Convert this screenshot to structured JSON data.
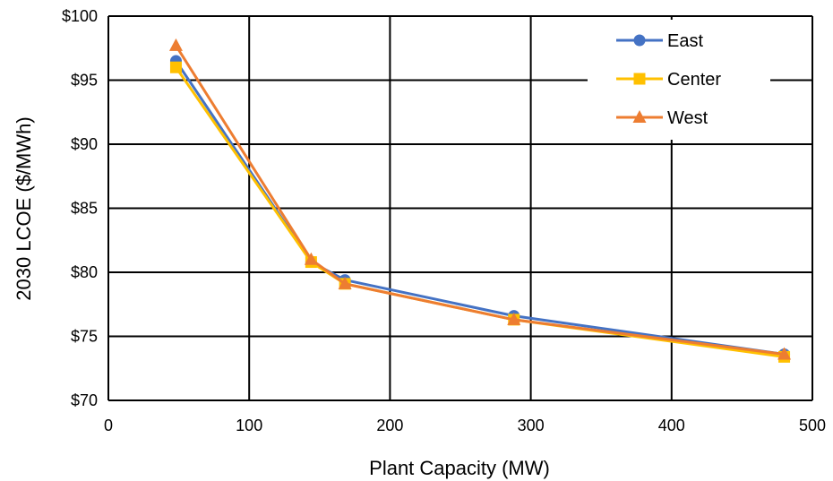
{
  "chart_data": {
    "type": "line",
    "title": "",
    "xlabel": "Plant Capacity (MW)",
    "ylabel": "2030 LCOE ($/MWh)",
    "xlim": [
      0,
      500
    ],
    "ylim": [
      70,
      100
    ],
    "x_ticks": [
      0,
      100,
      200,
      300,
      400,
      500
    ],
    "x_tick_labels": [
      "0",
      "100",
      "200",
      "300",
      "400",
      "500"
    ],
    "y_ticks": [
      70,
      75,
      80,
      85,
      90,
      95,
      100
    ],
    "y_tick_labels": [
      "$70",
      "$75",
      "$80",
      "$85",
      "$90",
      "$95",
      "$100"
    ],
    "grid": true,
    "legend_position": "top-right",
    "series": [
      {
        "name": "East",
        "color": "#4472C4",
        "marker": "circle",
        "x": [
          48,
          144,
          168,
          288,
          480
        ],
        "y": [
          96.5,
          80.8,
          79.4,
          76.6,
          73.6
        ]
      },
      {
        "name": "Center",
        "color": "#FFC000",
        "marker": "square",
        "x": [
          48,
          144,
          168,
          288,
          480
        ],
        "y": [
          96.0,
          80.8,
          79.1,
          76.3,
          73.4
        ]
      },
      {
        "name": "West",
        "color": "#ED7D31",
        "marker": "triangle",
        "x": [
          48,
          144,
          168,
          288,
          480
        ],
        "y": [
          97.7,
          81.0,
          79.1,
          76.3,
          73.6
        ]
      }
    ]
  }
}
